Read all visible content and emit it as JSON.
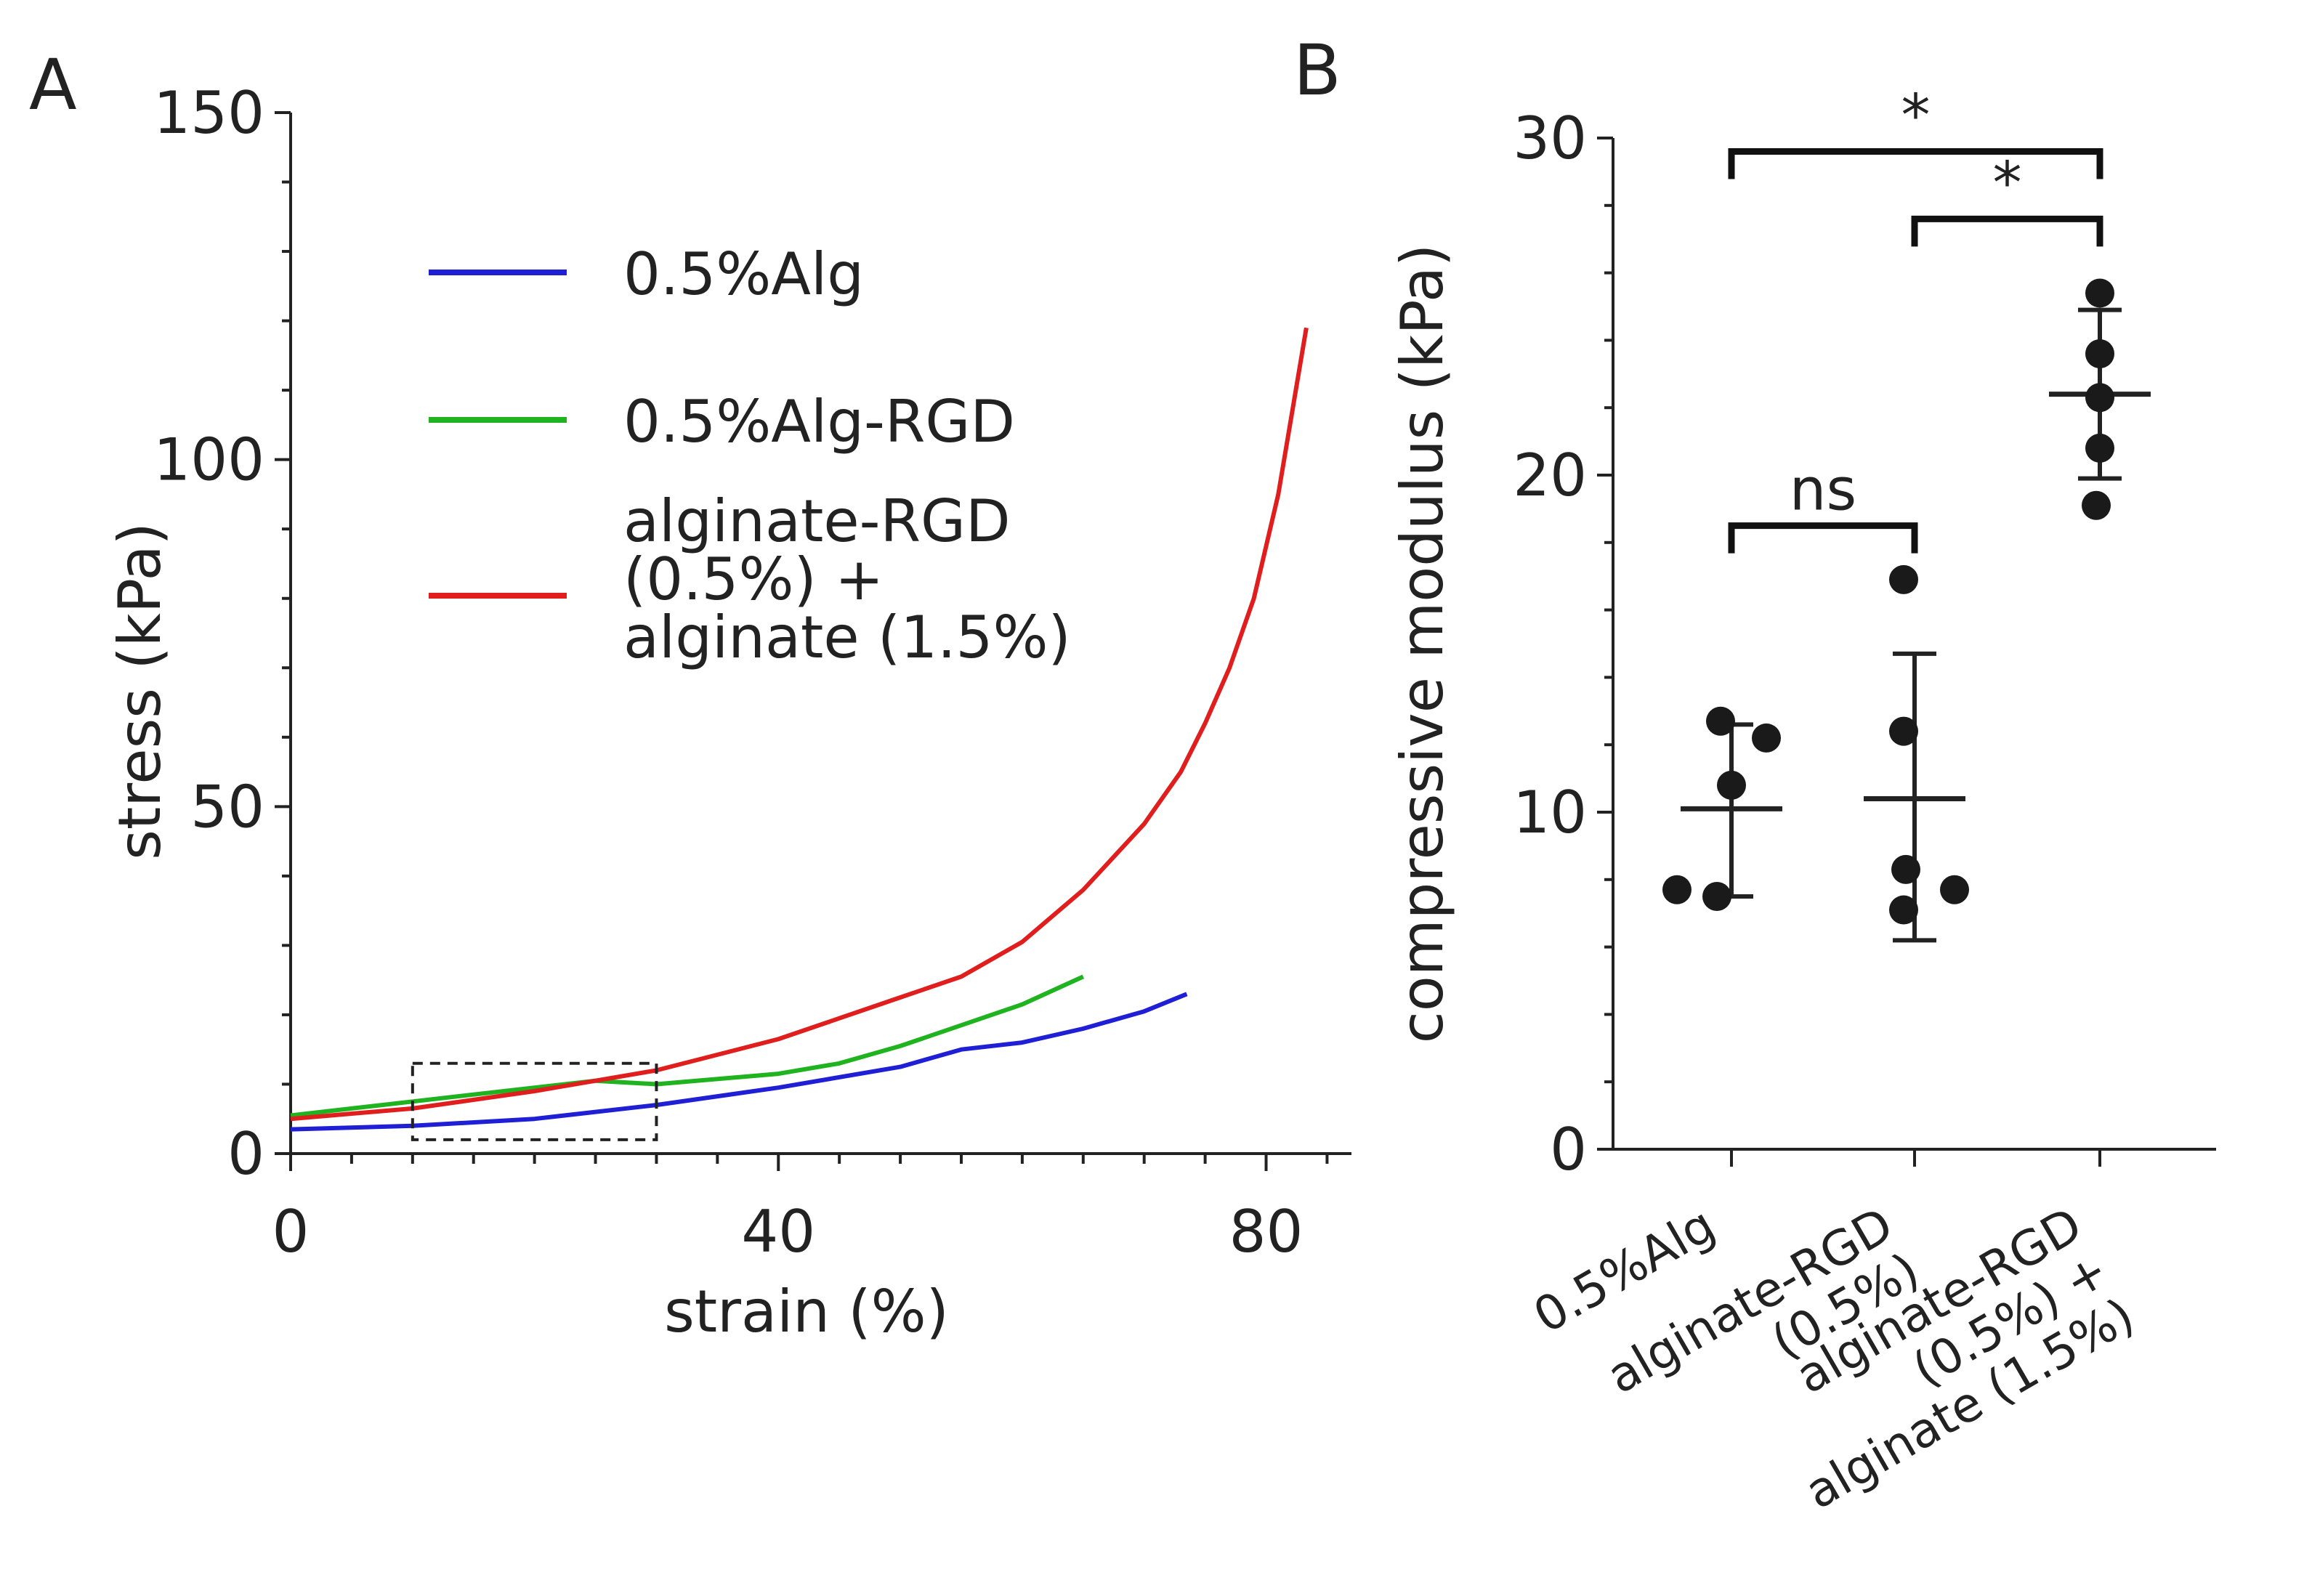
{
  "chart_data": [
    {
      "panel": "A",
      "type": "line",
      "xlabel": "strain (%)",
      "ylabel": "stress (kPa)",
      "xlim": [
        0,
        87
      ],
      "ylim": [
        0,
        150
      ],
      "x_ticks": [
        0,
        40,
        80
      ],
      "y_ticks": [
        0,
        50,
        100,
        150
      ],
      "grid": false,
      "legend_position": "top-middle",
      "annotation": "dashed rectangle marks strain 10-30% and stress 2-13 kPa",
      "inset_box": {
        "x": [
          10,
          30
        ],
        "y": [
          2,
          13
        ]
      },
      "series": [
        {
          "name": "0.5%Alg",
          "label_lines": [
            "0.5%Alg"
          ],
          "color": "#1f1fd6",
          "x": [
            0,
            10,
            20,
            30,
            40,
            50,
            55,
            60,
            65,
            70,
            73.5
          ],
          "y": [
            3.5,
            4,
            5,
            7,
            9.5,
            12.5,
            15,
            16,
            18,
            20.5,
            23
          ]
        },
        {
          "name": "0.5%Alg-RGD",
          "label_lines": [
            "0.5%Alg-RGD"
          ],
          "color": "#1fb31f",
          "x": [
            0,
            10,
            20,
            25,
            30,
            40,
            45,
            50,
            55,
            60,
            65
          ],
          "y": [
            5.5,
            7.5,
            9.5,
            10.5,
            10,
            11.5,
            13,
            15.5,
            18.5,
            21.5,
            25.5
          ]
        },
        {
          "name": "alginate-RGD (0.5%) + alginate (1.5%)",
          "label_lines": [
            "alginate-RGD",
            "(0.5%) +",
            "alginate (1.5%)"
          ],
          "color": "#e01e1e",
          "x": [
            0,
            10,
            20,
            30,
            40,
            50,
            55,
            60,
            65,
            70,
            73,
            75,
            77,
            79,
            81,
            83.3
          ],
          "y": [
            5,
            6.5,
            9,
            12,
            16.5,
            22.5,
            25.5,
            30.5,
            38,
            47.5,
            55,
            62,
            70,
            80,
            95,
            119
          ]
        }
      ]
    },
    {
      "panel": "B",
      "type": "scatter",
      "ylabel": "compressive modulus (kPa)",
      "ylim": [
        0,
        30
      ],
      "y_ticks": [
        0,
        10,
        20,
        30
      ],
      "grid": false,
      "categories": [
        {
          "lines": [
            "0.5%Alg"
          ]
        },
        {
          "lines": [
            "alginate-RGD",
            "(0.5%)"
          ]
        },
        {
          "lines": [
            "alginate-RGD",
            "(0.5%) +",
            "alginate (1.5%)"
          ]
        }
      ],
      "groups": [
        {
          "points": [
            12.7,
            12.2,
            10.8,
            7.7,
            7.5
          ],
          "mean": 10.1,
          "sd_low": 7.5,
          "sd_high": 12.6
        },
        {
          "points": [
            16.9,
            12.4,
            8.3,
            7.7,
            7.1
          ],
          "mean": 10.4,
          "sd_low": 6.2,
          "sd_high": 14.7
        },
        {
          "points": [
            25.4,
            23.6,
            22.3,
            20.8,
            19.1
          ],
          "mean": 22.4,
          "sd_low": 19.9,
          "sd_high": 24.9
        }
      ],
      "comparisons": [
        {
          "a": 0,
          "b": 2,
          "label": "*"
        },
        {
          "a": 1,
          "b": 2,
          "label": "*"
        },
        {
          "a": 0,
          "b": 1,
          "label": "ns"
        }
      ]
    }
  ]
}
